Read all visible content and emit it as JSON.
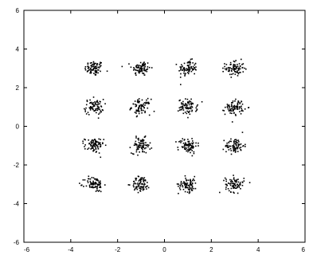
{
  "chart_data": {
    "type": "scatter",
    "title": "",
    "xlabel": "",
    "ylabel": "",
    "xlim": [
      -6,
      6
    ],
    "ylim": [
      -6,
      6
    ],
    "grid": false,
    "legend": "none",
    "xticks": [
      "-6",
      "-4",
      "-2",
      "0",
      "2",
      "4",
      "6"
    ],
    "yticks": [
      "6",
      "4",
      "2",
      "0",
      "-2",
      "-4",
      "-6"
    ],
    "marker_color": "#000000",
    "marker": "dot",
    "series": [
      {
        "cluster_centers": [
          [
            -3,
            3
          ],
          [
            -1,
            3
          ],
          [
            1,
            3
          ],
          [
            3,
            3
          ],
          [
            -3,
            1
          ],
          [
            -1,
            1
          ],
          [
            1,
            1
          ],
          [
            3,
            1
          ],
          [
            -3,
            -1
          ],
          [
            -1,
            -1
          ],
          [
            1,
            -1
          ],
          [
            3,
            -1
          ],
          [
            -3,
            -3
          ],
          [
            -1,
            -3
          ],
          [
            1,
            -3
          ],
          [
            3,
            -3
          ]
        ],
        "points_per_cluster": 80,
        "spread_sd": 0.2
      }
    ]
  }
}
